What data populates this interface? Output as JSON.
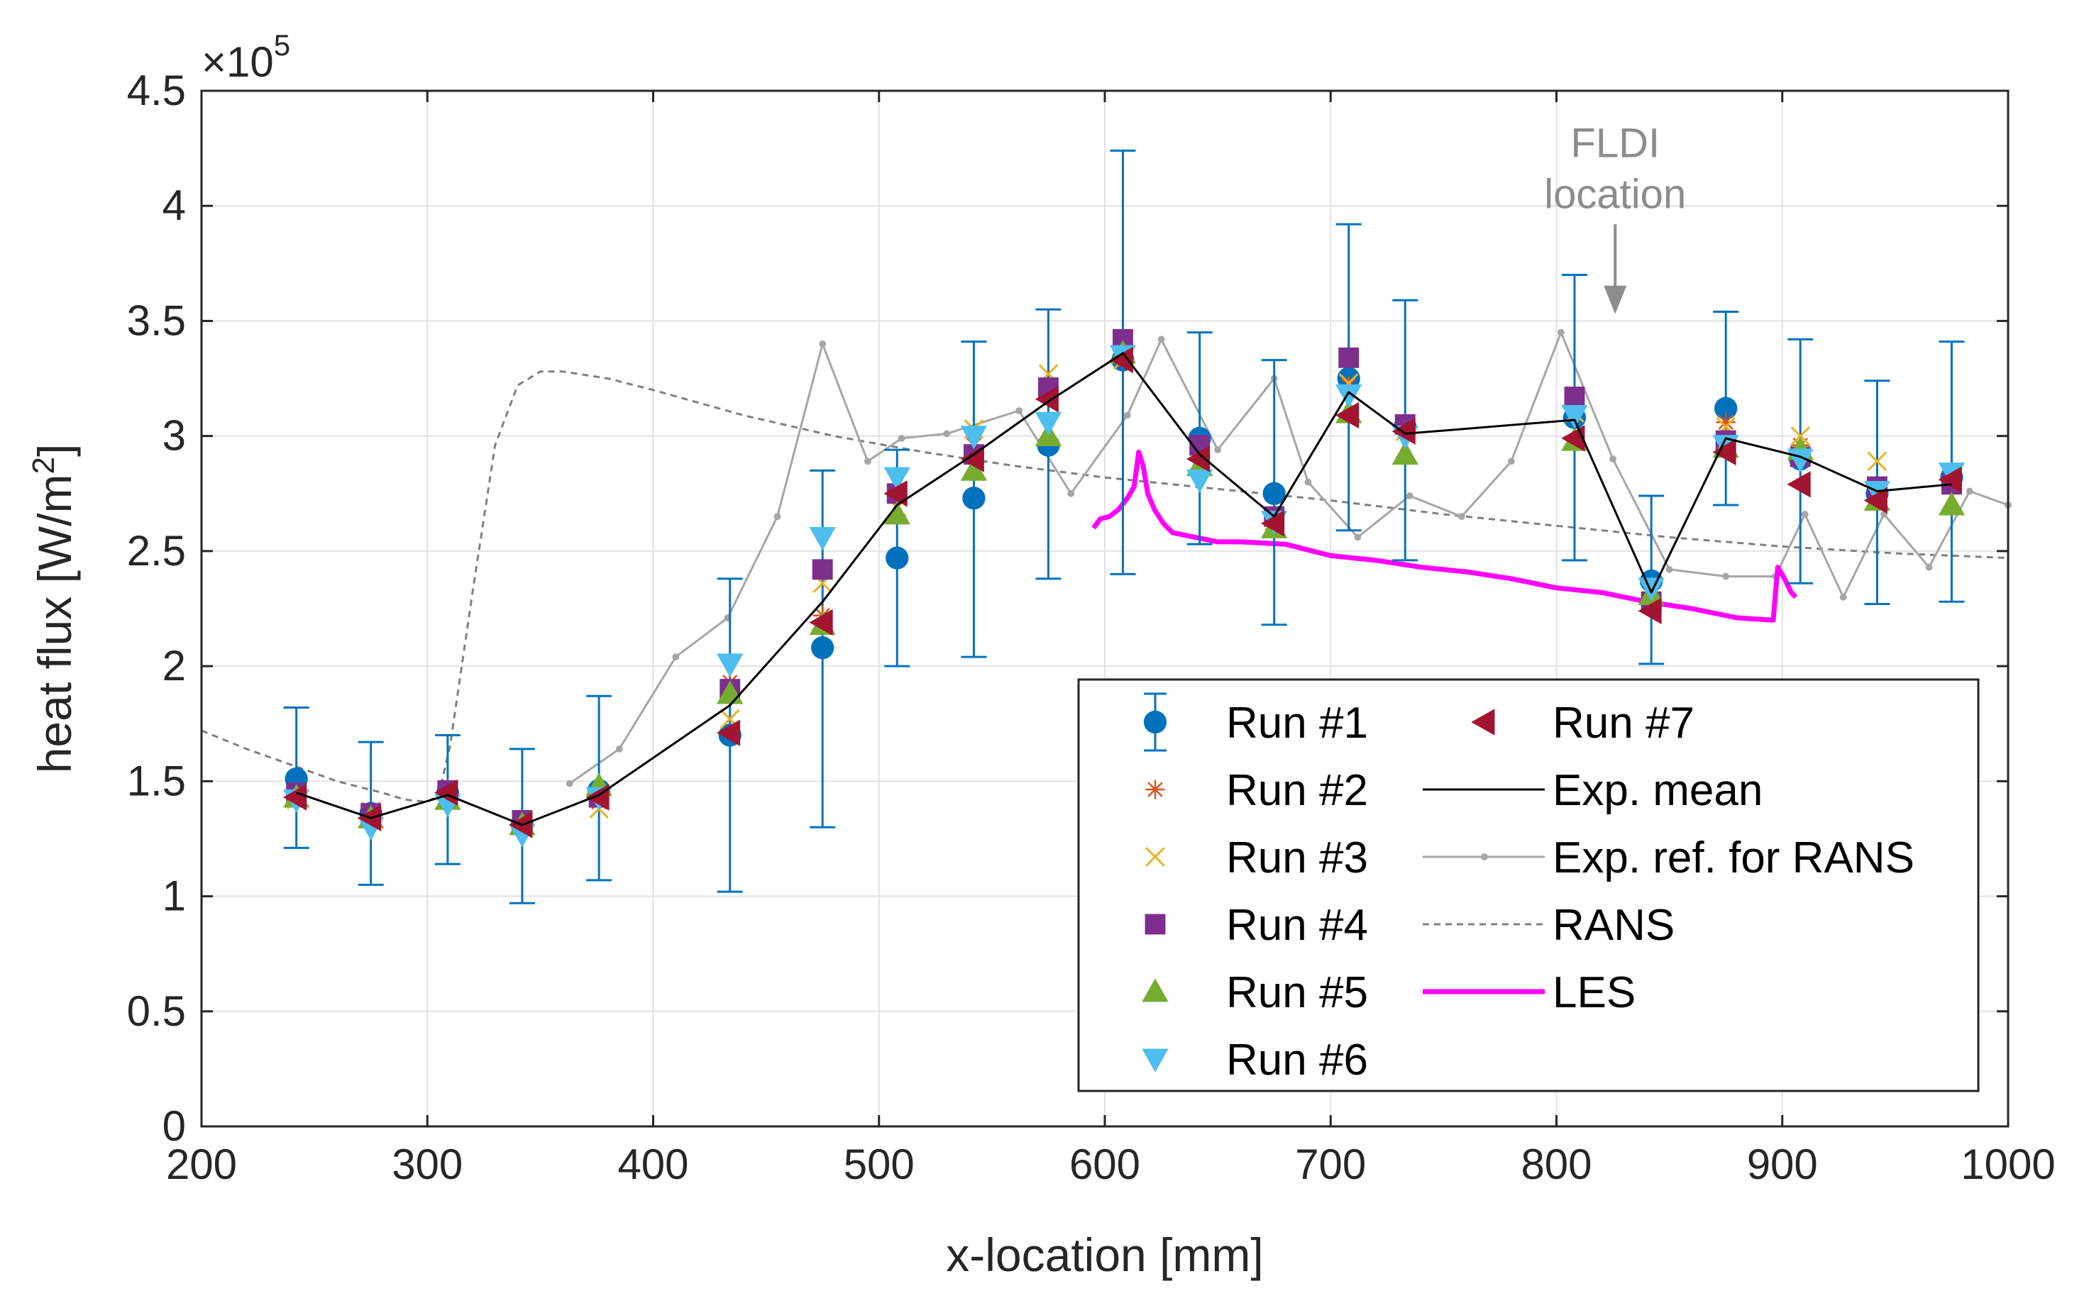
{
  "chart_data": {
    "type": "scatter",
    "title": "",
    "xlabel": "x-location [mm]",
    "ylabel_base": "heat flux [W/m",
    "ylabel_sup": "2",
    "ylabel_end": "]",
    "exponent_base": "×10",
    "exponent_power": "5",
    "xlim": [
      200,
      1000
    ],
    "ylim": [
      0,
      450000
    ],
    "xticks": [
      200,
      300,
      400,
      500,
      600,
      700,
      800,
      900,
      1000
    ],
    "xtick_labels": [
      "200",
      "300",
      "400",
      "500",
      "600",
      "700",
      "800",
      "900",
      "1000"
    ],
    "yticks": [
      0,
      50000,
      100000,
      150000,
      200000,
      250000,
      300000,
      350000,
      400000,
      450000
    ],
    "ytick_labels": [
      "0",
      "0.5",
      "1",
      "1.5",
      "2",
      "2.5",
      "3",
      "3.5",
      "4",
      "4.5"
    ],
    "grid": true,
    "annotation": {
      "lines": [
        "FLDI",
        "location"
      ],
      "x": 826,
      "y_text": 415000,
      "arrow_from": 392000,
      "arrow_to": 353000,
      "color": "#8c8c8c"
    },
    "legend": {
      "position": "bottom-right",
      "left_column": [
        "Run #1",
        "Run #2",
        "Run #3",
        "Run #4",
        "Run #5",
        "Run #6"
      ],
      "right_column": [
        "Run #7",
        "Exp. mean",
        "Exp. ref. for RANS",
        "RANS",
        "LES"
      ]
    },
    "series": [
      {
        "name": "Run #1",
        "marker": "circle",
        "color": "#0072BD",
        "x": [
          242,
          275,
          309,
          342,
          376,
          434,
          475,
          508,
          542,
          575,
          608,
          642,
          675,
          708,
          733,
          808,
          842,
          875,
          908,
          942,
          975
        ],
        "y": [
          151000,
          136000,
          145000,
          131000,
          146000,
          170000,
          208000,
          247000,
          273000,
          296000,
          333000,
          299000,
          275000,
          325000,
          304000,
          308000,
          237000,
          312000,
          290000,
          275000,
          282000
        ],
        "err_low": [
          121000,
          105000,
          114000,
          97000,
          107000,
          102000,
          130000,
          200000,
          204000,
          238000,
          240000,
          253000,
          218000,
          259000,
          246000,
          246000,
          201000,
          270000,
          236000,
          227000,
          228000
        ],
        "err_high": [
          182000,
          167000,
          170000,
          164000,
          187000,
          238000,
          285000,
          294000,
          341000,
          355000,
          424000,
          345000,
          333000,
          392000,
          359000,
          370000,
          274000,
          354000,
          342000,
          324000,
          341000
        ],
        "err_color": "#0072BD"
      },
      {
        "name": "Run #2",
        "marker": "asterisk",
        "color": "#D95319",
        "x": [
          242,
          275,
          309,
          342,
          376,
          434,
          475,
          508,
          542,
          575,
          608,
          642,
          675,
          708,
          733,
          808,
          842,
          875,
          908,
          942,
          975
        ],
        "y": [
          144000,
          135000,
          147000,
          133000,
          141000,
          193000,
          222000,
          276000,
          296000,
          321000,
          337000,
          296000,
          264000,
          322000,
          305000,
          312000,
          232000,
          306000,
          296000,
          276000,
          280000
        ]
      },
      {
        "name": "Run #3",
        "marker": "x",
        "color": "#EDB120",
        "x": [
          242,
          275,
          309,
          342,
          376,
          434,
          475,
          508,
          542,
          575,
          608,
          642,
          675,
          708,
          733,
          808,
          842,
          875,
          908,
          942,
          975
        ],
        "y": [
          142000,
          137000,
          144000,
          132000,
          138000,
          177000,
          236000,
          269000,
          303000,
          327000,
          333000,
          288000,
          263000,
          323000,
          302000,
          310000,
          233000,
          304000,
          300000,
          289000,
          282000
        ]
      },
      {
        "name": "Run #4",
        "marker": "square",
        "color": "#7E2F8E",
        "x": [
          242,
          275,
          309,
          342,
          376,
          434,
          475,
          508,
          542,
          575,
          608,
          642,
          675,
          708,
          733,
          808,
          842,
          875,
          908,
          942,
          975
        ],
        "y": [
          145000,
          136000,
          146000,
          133000,
          143000,
          190000,
          242000,
          275000,
          292000,
          321000,
          342000,
          296000,
          265000,
          334000,
          305000,
          317000,
          228000,
          298000,
          291000,
          278000,
          279000
        ]
      },
      {
        "name": "Run #5",
        "marker": "triangle-up",
        "color": "#77AC30",
        "x": [
          242,
          275,
          309,
          342,
          376,
          434,
          475,
          508,
          542,
          575,
          608,
          642,
          675,
          708,
          733,
          808,
          842,
          875,
          908,
          942,
          975
        ],
        "y": [
          143000,
          134000,
          142000,
          131000,
          148000,
          188000,
          218000,
          266000,
          285000,
          300000,
          336000,
          287000,
          260000,
          310000,
          292000,
          298000,
          231000,
          295000,
          294000,
          272000,
          270000
        ]
      },
      {
        "name": "Run #6",
        "marker": "triangle-down",
        "color": "#4DBEEE",
        "x": [
          242,
          275,
          309,
          342,
          376,
          434,
          475,
          508,
          542,
          575,
          608,
          642,
          675,
          708,
          733,
          808,
          842,
          875,
          908,
          942,
          975
        ],
        "y": [
          142000,
          130000,
          140000,
          127000,
          143000,
          201000,
          256000,
          282000,
          300000,
          306000,
          335000,
          281000,
          263000,
          318000,
          300000,
          309000,
          234000,
          296000,
          290000,
          276000,
          284000
        ]
      },
      {
        "name": "Run #7",
        "marker": "triangle-left",
        "color": "#A2142F",
        "x": [
          242,
          275,
          309,
          342,
          376,
          434,
          475,
          508,
          542,
          575,
          608,
          642,
          675,
          708,
          733,
          808,
          842,
          875,
          908,
          942,
          975
        ],
        "y": [
          143000,
          134000,
          145000,
          131000,
          143000,
          171000,
          219000,
          275000,
          290000,
          316000,
          333000,
          290000,
          262000,
          309000,
          302000,
          299000,
          224000,
          293000,
          279000,
          272000,
          281000
        ]
      },
      {
        "name": "Exp. mean",
        "line": "solid",
        "color": "#000000",
        "x": [
          242,
          275,
          309,
          342,
          376,
          434,
          475,
          508,
          542,
          575,
          608,
          642,
          675,
          708,
          733,
          808,
          842,
          875,
          908,
          942,
          975
        ],
        "y": [
          145000,
          134000,
          144000,
          131000,
          144000,
          183000,
          228000,
          270000,
          292000,
          315000,
          336000,
          292000,
          265000,
          319000,
          301000,
          307000,
          232000,
          299000,
          291000,
          276000,
          279000
        ]
      },
      {
        "name": "Exp. ref. for RANS",
        "line": "solid",
        "marker": "dot",
        "color": "#a6a6a6",
        "x": [
          363,
          385,
          410,
          433,
          455,
          475,
          495,
          510,
          530,
          562,
          585,
          610,
          625,
          650,
          675,
          690,
          712,
          735,
          758,
          780,
          802,
          825,
          850,
          875,
          897,
          910,
          927,
          945,
          965,
          983,
          1000
        ],
        "y": [
          149000,
          164000,
          204000,
          221000,
          265000,
          340000,
          289000,
          299000,
          301000,
          311000,
          275000,
          309000,
          342000,
          294000,
          325000,
          280000,
          256000,
          274000,
          265000,
          289000,
          345000,
          290000,
          242000,
          239000,
          239000,
          266000,
          230000,
          266000,
          243000,
          276000,
          270000
        ]
      },
      {
        "name": "RANS",
        "line": "dashed",
        "color": "#808080",
        "x": [
          200,
          220,
          240,
          260,
          280,
          290,
          300,
          305,
          310,
          320,
          330,
          340,
          350,
          360,
          380,
          400,
          440,
          480,
          520,
          560,
          600,
          650,
          700,
          750,
          800,
          850,
          900,
          950,
          1000
        ],
        "y": [
          172000,
          164000,
          157000,
          150000,
          145000,
          142000,
          141000,
          144000,
          165000,
          232000,
          296000,
          322000,
          328000,
          328000,
          325000,
          320000,
          309000,
          300000,
          293000,
          287000,
          282000,
          277000,
          272000,
          266000,
          261000,
          256000,
          252000,
          249000,
          247000
        ]
      },
      {
        "name": "LES",
        "line": "solid",
        "color": "#FF00FF",
        "x": [
          595,
          598,
          602,
          606,
          610,
          613,
          615,
          617,
          619,
          622,
          626,
          630,
          640,
          650,
          660,
          680,
          700,
          720,
          740,
          760,
          780,
          800,
          820,
          840,
          860,
          880,
          896,
          898,
          901,
          904,
          906
        ],
        "y": [
          260000,
          264000,
          265000,
          268000,
          273000,
          278000,
          293000,
          287000,
          275000,
          268000,
          262000,
          258000,
          256000,
          254000,
          254000,
          253000,
          248000,
          246000,
          243000,
          241000,
          238000,
          234000,
          232000,
          228000,
          225000,
          221000,
          220000,
          243000,
          238000,
          232000,
          230000
        ]
      }
    ]
  }
}
